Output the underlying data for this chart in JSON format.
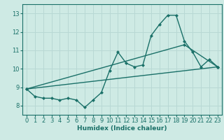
{
  "bg_color": "#ceeae4",
  "grid_color": "#b8d8d4",
  "line_color": "#1a7068",
  "xlabel": "Humidex (Indice chaleur)",
  "xlim": [
    -0.5,
    23.5
  ],
  "ylim": [
    7.5,
    13.5
  ],
  "yticks": [
    8,
    9,
    10,
    11,
    12,
    13
  ],
  "xticks": [
    0,
    1,
    2,
    3,
    4,
    5,
    6,
    7,
    8,
    9,
    10,
    11,
    12,
    13,
    14,
    15,
    16,
    17,
    18,
    19,
    20,
    21,
    22,
    23
  ],
  "line1_x": [
    0,
    1,
    2,
    3,
    4,
    5,
    6,
    7,
    8,
    9,
    10,
    11,
    12,
    13,
    14,
    15,
    16,
    17,
    18,
    19,
    20,
    21,
    22,
    23
  ],
  "line1_y": [
    8.9,
    8.5,
    8.4,
    8.4,
    8.3,
    8.4,
    8.3,
    7.9,
    8.3,
    8.7,
    9.9,
    10.9,
    10.3,
    10.1,
    10.2,
    11.8,
    12.4,
    12.9,
    12.9,
    11.5,
    10.9,
    10.1,
    10.5,
    10.1
  ],
  "line2_x": [
    0,
    23
  ],
  "line2_y": [
    8.9,
    10.1
  ],
  "line3_x": [
    0,
    19,
    23
  ],
  "line3_y": [
    8.9,
    11.3,
    10.1
  ],
  "marker": "D",
  "markersize": 2.5,
  "linewidth": 1.0,
  "tick_fontsize": 6.0,
  "xlabel_fontsize": 6.5
}
